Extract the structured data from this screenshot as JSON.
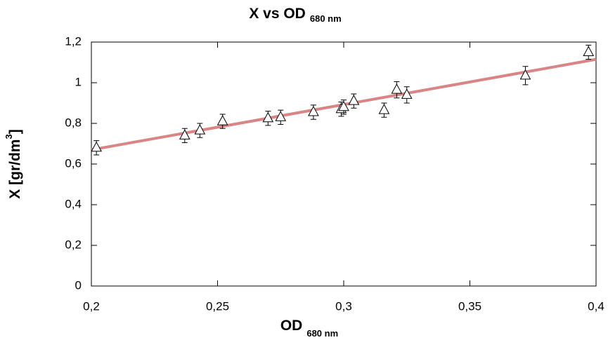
{
  "chart_data": {
    "type": "scatter",
    "title": "X vs OD",
    "title_subscript": "680 nm",
    "xlabel": "OD",
    "xlabel_subscript": "680 nm",
    "ylabel": "X [gr/dm",
    "ylabel_superscript": "3",
    "ylabel_end": "]",
    "x": [
      0.202,
      0.237,
      0.243,
      0.252,
      0.27,
      0.275,
      0.288,
      0.299,
      0.3,
      0.304,
      0.316,
      0.321,
      0.325,
      0.372,
      0.397
    ],
    "values": [
      0.68,
      0.74,
      0.765,
      0.81,
      0.825,
      0.83,
      0.855,
      0.87,
      0.88,
      0.91,
      0.865,
      0.965,
      0.94,
      1.035,
      1.15
    ],
    "errors": [
      0.035,
      0.035,
      0.035,
      0.035,
      0.035,
      0.035,
      0.035,
      0.035,
      0.035,
      0.035,
      0.035,
      0.04,
      0.04,
      0.045,
      0.035
    ],
    "color": "#000000",
    "fit_line": {
      "color": "#d98585",
      "x": [
        0.2,
        0.4
      ],
      "values": [
        0.67,
        1.115
      ]
    },
    "xlim": [
      0.2,
      0.4
    ],
    "xticks": [
      {
        "value": 0.2,
        "label": "0,2"
      },
      {
        "value": 0.25,
        "label": "0,25"
      },
      {
        "value": 0.3,
        "label": "0,3"
      },
      {
        "value": 0.35,
        "label": "0,35"
      },
      {
        "value": 0.4,
        "label": "0,4"
      }
    ],
    "ylim": [
      0,
      1.2
    ],
    "yticks": [
      0,
      {
        "value": 0.2,
        "label": "0,2"
      },
      {
        "value": 0.4,
        "label": "0,4"
      },
      {
        "value": 0.6,
        "label": "0,6"
      },
      {
        "value": 0.8,
        "label": "0,8"
      },
      1,
      {
        "value": 1.2,
        "label": "1,2"
      }
    ],
    "grid": false
  }
}
